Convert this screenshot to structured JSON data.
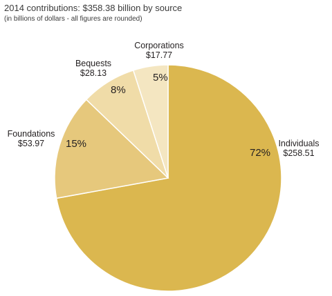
{
  "title": "2014 contributions: $358.38 billion by source",
  "subtitle": "(in billions of dollars - all figures are rounded)",
  "chart_data": {
    "type": "pie",
    "title": "2014 contributions: $358.38 billion by source",
    "subtitle": "(in billions of dollars - all figures are rounded)",
    "slices": [
      {
        "label": "Individuals",
        "value_label": "$258.51",
        "value": 258.51,
        "percent": 72,
        "percent_label": "72%",
        "color": "#dbb74f"
      },
      {
        "label": "Foundations",
        "value_label": "$53.97",
        "value": 53.97,
        "percent": 15,
        "percent_label": "15%",
        "color": "#e6c87c"
      },
      {
        "label": "Bequests",
        "value_label": "$28.13",
        "value": 28.13,
        "percent": 8,
        "percent_label": "8%",
        "color": "#f0dca8"
      },
      {
        "label": "Corporations",
        "value_label": "$17.77",
        "value": 17.77,
        "percent": 5,
        "percent_label": "5%",
        "color": "#f4e6c1"
      }
    ]
  }
}
